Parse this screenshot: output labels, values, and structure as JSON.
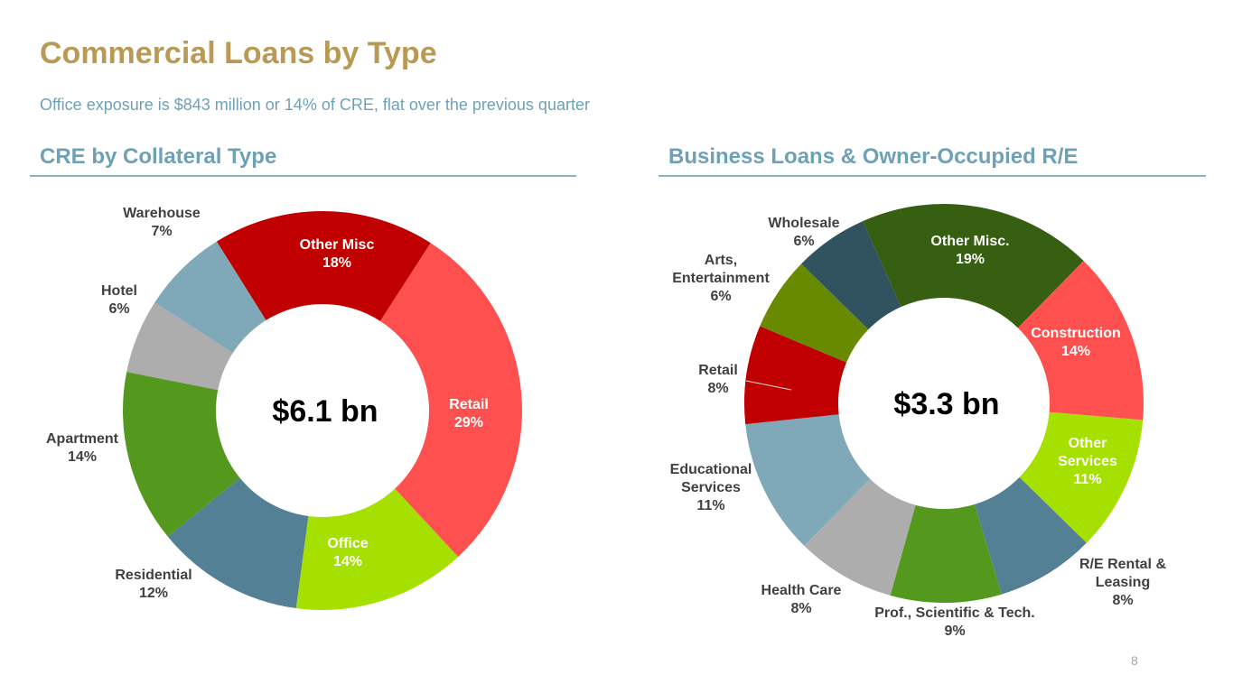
{
  "header": {
    "title": "Commercial Loans by Type",
    "subtitle": "Office exposure is $843 million or 14% of CRE, flat over the previous quarter"
  },
  "page_number": "8",
  "chart_data": [
    {
      "type": "pie",
      "variant": "donut",
      "title": "CRE by Collateral Type",
      "center_label": "$6.1 bn",
      "categories": [
        "Other Misc",
        "Retail",
        "Office",
        "Residential",
        "Apartment",
        "Hotel",
        "Warehouse"
      ],
      "values": [
        18,
        29,
        14,
        12,
        14,
        6,
        7
      ],
      "unit": "%",
      "colors": [
        "#C00000",
        "#FF5050",
        "#A6E000",
        "#538094",
        "#55981E",
        "#ADADAD",
        "#7FA8B8"
      ],
      "label_colors": [
        "#FFFFFF",
        "#FFFFFF",
        "#FFFFFF",
        "#404040",
        "#404040",
        "#404040",
        "#404040"
      ]
    },
    {
      "type": "pie",
      "variant": "donut",
      "title": "Business Loans & Owner-Occupied R/E",
      "center_label": "$3.3 bn",
      "categories": [
        "Other Misc.",
        "Construction",
        "Other Services",
        "R/E Rental & Leasing",
        "Prof., Scientific & Tech.",
        "Health Care",
        "Educational Services",
        "Retail",
        "Arts, Entertainment",
        "Wholesale"
      ],
      "values": [
        19,
        14,
        11,
        8,
        9,
        8,
        11,
        8,
        6,
        6
      ],
      "unit": "%",
      "colors": [
        "#375F12",
        "#FF5050",
        "#A6E000",
        "#538094",
        "#55981E",
        "#ADADAD",
        "#7FA8B8",
        "#C00000",
        "#688A00",
        "#31525F"
      ],
      "label_colors": [
        "#FFFFFF",
        "#FFFFFF",
        "#FFFFFF",
        "#404040",
        "#404040",
        "#404040",
        "#404040",
        "#404040",
        "#404040",
        "#404040"
      ]
    }
  ]
}
